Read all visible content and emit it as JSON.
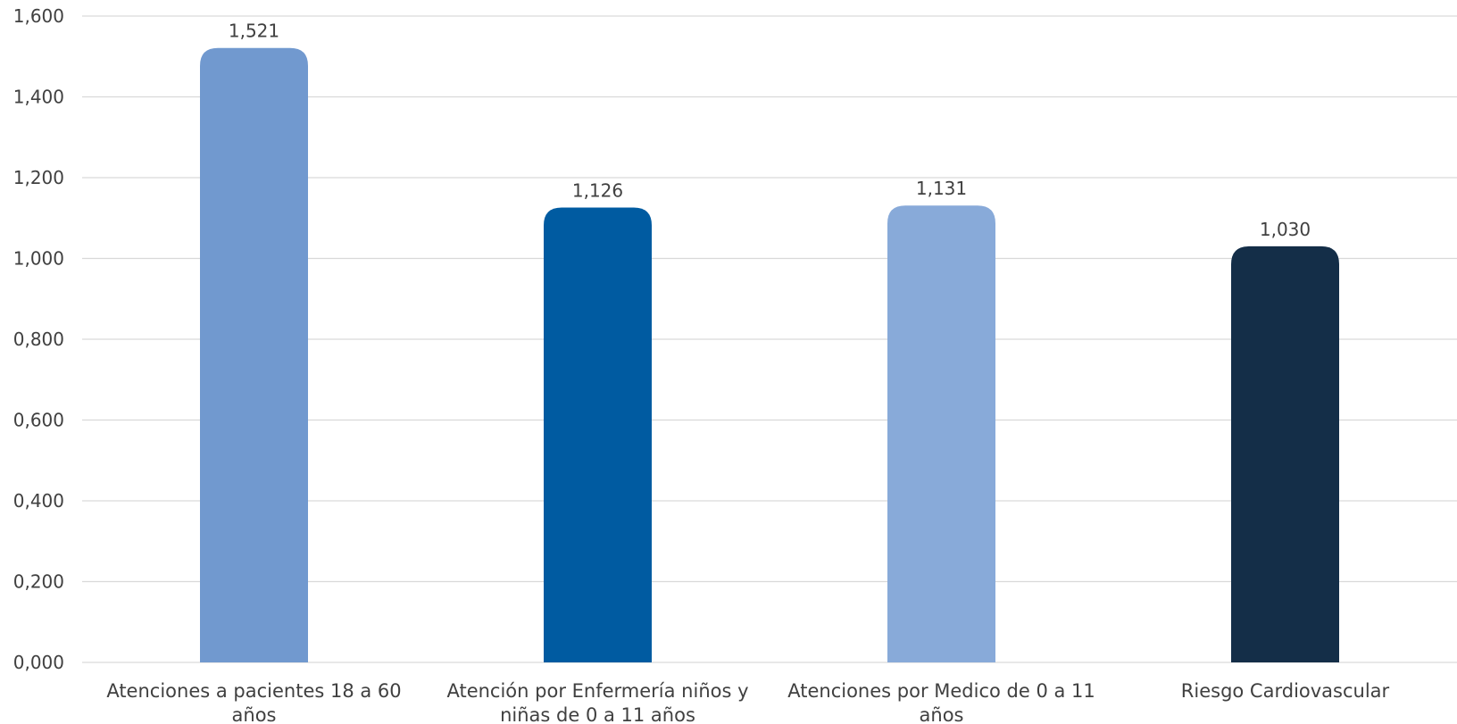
{
  "chart_data": {
    "type": "bar",
    "title": "",
    "xlabel": "",
    "ylabel": "",
    "categories": [
      [
        "Atenciones a pacientes 18 a 60",
        "años"
      ],
      [
        "Atención por Enfermería niños y",
        "niñas de 0 a 11 años"
      ],
      [
        "Atenciones por Medico de 0 a 11",
        "años"
      ],
      [
        "Riesgo Cardiovascular"
      ]
    ],
    "values": [
      1.521,
      1.126,
      1.131,
      1.03
    ],
    "value_labels": [
      "1,521",
      "1,126",
      "1,131",
      "1,030"
    ],
    "bar_colors": [
      "#7199cf",
      "#005ba1",
      "#88aad9",
      "#142e48"
    ],
    "ylim": [
      0,
      1.6
    ],
    "y_ticks": [
      0,
      0.2,
      0.4,
      0.6,
      0.8,
      1.0,
      1.2,
      1.4,
      1.6
    ],
    "y_tick_labels": [
      "0,000",
      "0,200",
      "0,400",
      "0,600",
      "0,800",
      "1,000",
      "1,200",
      "1,400",
      "1,600"
    ],
    "grid": true,
    "legend": "none"
  }
}
